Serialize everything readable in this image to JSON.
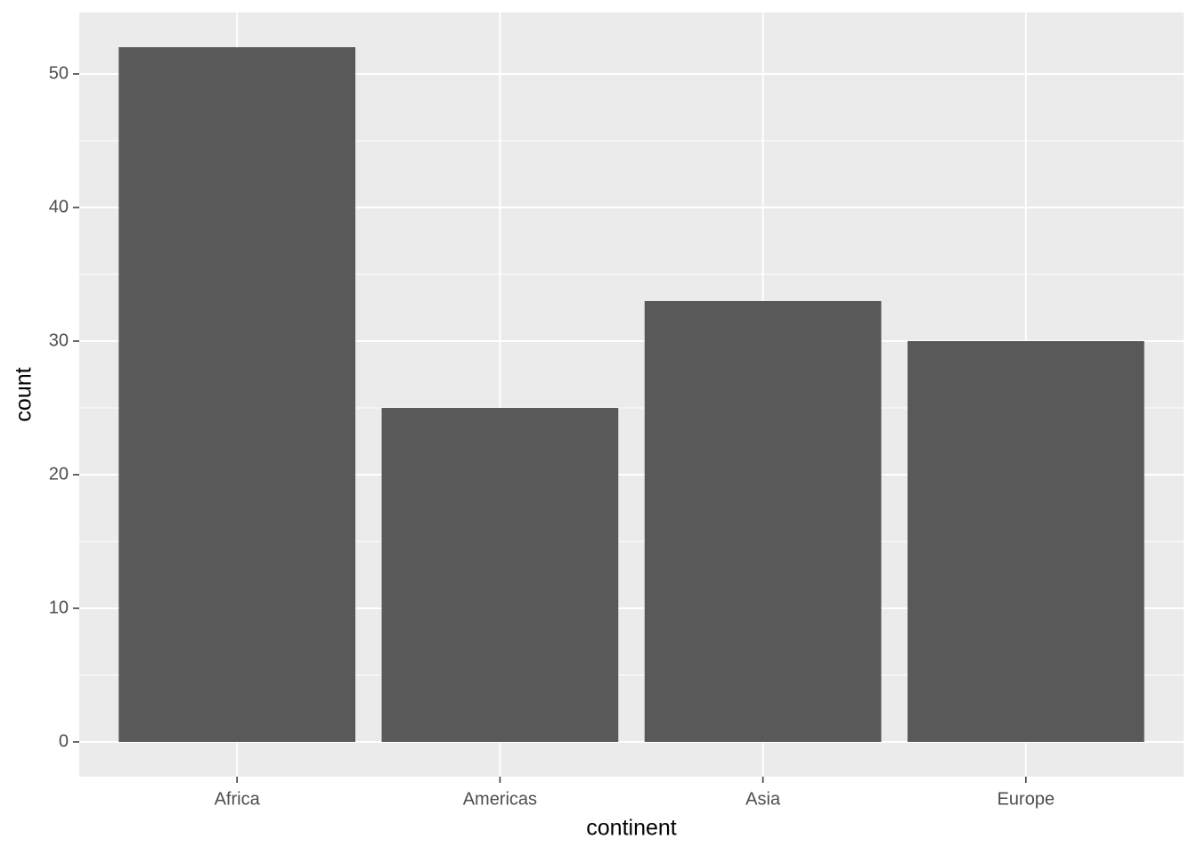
{
  "chart_data": {
    "type": "bar",
    "x_label": "continent",
    "y_label": "count",
    "categories": [
      "Africa",
      "Americas",
      "Asia",
      "Europe"
    ],
    "values": [
      52,
      25,
      33,
      30
    ],
    "color": "#595959",
    "ylim": [
      -2.6,
      54.6
    ],
    "yticks": [
      0,
      10,
      20,
      30,
      40,
      50
    ],
    "grid": true
  }
}
